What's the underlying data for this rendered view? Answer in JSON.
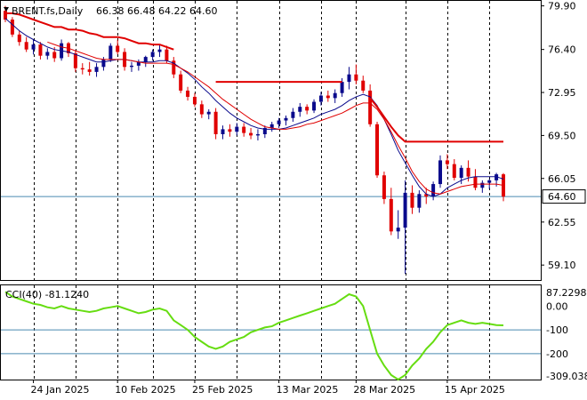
{
  "header": {
    "symbol": "BRENT.fs,Daily",
    "ohlc": "66.38 66.48 64.22 64.60"
  },
  "colors": {
    "background": "#ffffff",
    "grid": "#000000",
    "candle_up": "#0a0a8c",
    "candle_down": "#e00000",
    "ma_fast": "#0a0a8c",
    "ma_slow": "#e00000",
    "sar_trail": "#e00000",
    "price_line": "#4a8ab0",
    "cci": "#66dd11",
    "level_line": "#4a8ab0",
    "badge_bg": "#ffffff"
  },
  "price_axis": {
    "ticks": [
      "79.90",
      "76.40",
      "72.95",
      "69.50",
      "66.05",
      "62.55",
      "59.10"
    ],
    "current_badge": "64.60"
  },
  "cci_panel": {
    "label": "CCI(40) -81.1240",
    "ticks": [
      "87.2298",
      "0.00",
      "-100",
      "-200",
      "-309.038"
    ],
    "levels": [
      -100,
      -200
    ]
  },
  "x_axis": {
    "labels": [
      "24 Jan 2025",
      "10 Feb 2025",
      "25 Feb 2025",
      "13 Mar 2025",
      "28 Mar 2025",
      "15 Apr 2025"
    ]
  },
  "chart_data": [
    {
      "type": "candlestick",
      "title": "BRENT.fs,Daily",
      "ylim": [
        57.9,
        80.3
      ],
      "dates": [
        "2025-01-20",
        "2025-01-21",
        "2025-01-22",
        "2025-01-23",
        "2025-01-24",
        "2025-01-27",
        "2025-01-28",
        "2025-01-29",
        "2025-01-30",
        "2025-01-31",
        "2025-02-03",
        "2025-02-04",
        "2025-02-05",
        "2025-02-06",
        "2025-02-07",
        "2025-02-10",
        "2025-02-11",
        "2025-02-12",
        "2025-02-13",
        "2025-02-14",
        "2025-02-17",
        "2025-02-18",
        "2025-02-19",
        "2025-02-20",
        "2025-02-21",
        "2025-02-24",
        "2025-02-25",
        "2025-02-26",
        "2025-02-27",
        "2025-02-28",
        "2025-03-03",
        "2025-03-04",
        "2025-03-05",
        "2025-03-06",
        "2025-03-07",
        "2025-03-10",
        "2025-03-11",
        "2025-03-12",
        "2025-03-13",
        "2025-03-14",
        "2025-03-17",
        "2025-03-18",
        "2025-03-19",
        "2025-03-20",
        "2025-03-21",
        "2025-03-24",
        "2025-03-25",
        "2025-03-26",
        "2025-03-27",
        "2025-03-28",
        "2025-03-31",
        "2025-04-01",
        "2025-04-02",
        "2025-04-03",
        "2025-04-04",
        "2025-04-07",
        "2025-04-08",
        "2025-04-09",
        "2025-04-10",
        "2025-04-11",
        "2025-04-14",
        "2025-04-15",
        "2025-04-16",
        "2025-04-17",
        "2025-04-18",
        "2025-04-21",
        "2025-04-22",
        "2025-04-23",
        "2025-04-24",
        "2025-04-25",
        "2025-04-28",
        "2025-04-29"
      ],
      "ohlc": [
        [
          79.5,
          79.9,
          78.6,
          78.8
        ],
        [
          78.8,
          79.0,
          77.4,
          77.6
        ],
        [
          77.6,
          77.9,
          76.7,
          77.0
        ],
        [
          77.0,
          77.4,
          76.2,
          76.4
        ],
        [
          76.4,
          77.2,
          76.0,
          76.8
        ],
        [
          76.8,
          77.0,
          75.6,
          75.9
        ],
        [
          75.9,
          76.5,
          75.6,
          76.2
        ],
        [
          76.2,
          76.6,
          75.4,
          75.7
        ],
        [
          75.7,
          77.2,
          75.5,
          76.9
        ],
        [
          76.9,
          77.0,
          75.8,
          76.1
        ],
        [
          76.1,
          76.3,
          74.6,
          74.9
        ],
        [
          74.9,
          75.3,
          74.4,
          74.8
        ],
        [
          74.8,
          75.4,
          74.3,
          74.6
        ],
        [
          74.6,
          75.3,
          74.2,
          75.0
        ],
        [
          75.0,
          75.8,
          74.7,
          75.6
        ],
        [
          75.6,
          76.9,
          75.4,
          76.7
        ],
        [
          76.7,
          77.2,
          76.0,
          76.2
        ],
        [
          76.2,
          76.5,
          74.7,
          75.0
        ],
        [
          75.0,
          75.4,
          74.6,
          75.1
        ],
        [
          75.1,
          75.6,
          74.7,
          75.4
        ],
        [
          75.4,
          75.9,
          75.0,
          75.8
        ],
        [
          75.8,
          76.4,
          75.5,
          76.2
        ],
        [
          76.2,
          76.8,
          75.8,
          76.4
        ],
        [
          76.4,
          76.7,
          75.3,
          75.5
        ],
        [
          75.5,
          75.8,
          74.1,
          74.4
        ],
        [
          74.4,
          74.7,
          72.9,
          73.1
        ],
        [
          73.1,
          73.4,
          72.3,
          72.6
        ],
        [
          72.6,
          72.9,
          71.8,
          72.0
        ],
        [
          72.0,
          72.3,
          70.9,
          71.2
        ],
        [
          71.2,
          71.6,
          70.8,
          71.4
        ],
        [
          71.4,
          71.7,
          69.2,
          69.6
        ],
        [
          69.6,
          70.3,
          69.2,
          70.0
        ],
        [
          70.0,
          70.4,
          69.4,
          69.8
        ],
        [
          69.8,
          70.5,
          69.5,
          70.2
        ],
        [
          70.2,
          70.5,
          69.4,
          69.7
        ],
        [
          69.7,
          70.1,
          69.2,
          69.5
        ],
        [
          69.5,
          70.0,
          69.1,
          69.6
        ],
        [
          69.6,
          70.3,
          69.3,
          70.1
        ],
        [
          70.1,
          70.6,
          69.8,
          70.4
        ],
        [
          70.4,
          70.9,
          70.1,
          70.7
        ],
        [
          70.7,
          71.1,
          70.3,
          70.9
        ],
        [
          70.9,
          71.7,
          70.6,
          71.4
        ],
        [
          71.4,
          72.1,
          71.0,
          71.8
        ],
        [
          71.8,
          72.0,
          71.2,
          71.5
        ],
        [
          71.5,
          72.4,
          71.3,
          72.2
        ],
        [
          72.2,
          73.0,
          71.9,
          72.7
        ],
        [
          72.7,
          73.1,
          72.2,
          72.5
        ],
        [
          72.5,
          73.2,
          72.1,
          72.9
        ],
        [
          72.9,
          74.1,
          72.6,
          73.8
        ],
        [
          73.8,
          75.0,
          73.2,
          74.4
        ],
        [
          74.4,
          75.2,
          73.6,
          73.9
        ],
        [
          73.9,
          74.3,
          72.9,
          73.1
        ],
        [
          73.1,
          73.6,
          70.2,
          70.4
        ],
        [
          70.4,
          70.6,
          66.1,
          66.3
        ],
        [
          66.3,
          66.6,
          64.0,
          64.4
        ],
        [
          64.4,
          65.3,
          61.5,
          61.8
        ],
        [
          61.8,
          63.5,
          61.2,
          62.1
        ],
        [
          62.1,
          65.9,
          58.4,
          64.9
        ],
        [
          64.9,
          65.5,
          63.2,
          63.7
        ],
        [
          63.7,
          65.1,
          63.3,
          64.8
        ],
        [
          64.8,
          65.3,
          64.0,
          64.6
        ],
        [
          64.6,
          65.8,
          64.3,
          65.6
        ],
        [
          65.6,
          67.9,
          65.3,
          67.5
        ],
        [
          67.5,
          68.0,
          66.8,
          67.2
        ],
        [
          67.2,
          67.6,
          65.9,
          66.1
        ],
        [
          66.1,
          67.1,
          65.6,
          66.9
        ],
        [
          66.9,
          67.5,
          65.8,
          66.2
        ],
        [
          66.2,
          66.8,
          65.1,
          65.3
        ],
        [
          65.3,
          65.9,
          64.9,
          65.7
        ],
        [
          65.7,
          66.0,
          65.2,
          65.9
        ],
        [
          65.9,
          66.5,
          65.4,
          66.38
        ],
        [
          66.38,
          66.48,
          64.22,
          64.6
        ]
      ],
      "indicators": [
        {
          "name": "moving average (fast)",
          "color": "#0a0a8c",
          "values": [
            78.9,
            78.4,
            77.9,
            77.5,
            77.2,
            76.9,
            76.6,
            76.4,
            76.3,
            76.2,
            76.0,
            75.8,
            75.6,
            75.4,
            75.4,
            75.5,
            75.6,
            75.6,
            75.5,
            75.4,
            75.4,
            75.4,
            75.5,
            75.5,
            75.3,
            74.9,
            74.5,
            74.0,
            73.4,
            72.9,
            72.3,
            71.8,
            71.3,
            70.9,
            70.6,
            70.3,
            70.1,
            70.0,
            70.0,
            70.0,
            70.1,
            70.3,
            70.5,
            70.7,
            70.9,
            71.2,
            71.4,
            71.6,
            71.9,
            72.3,
            72.6,
            72.8,
            72.6,
            71.9,
            70.8,
            69.6,
            68.3,
            67.3,
            66.3,
            65.4,
            64.8,
            64.6,
            64.8,
            65.3,
            65.6,
            65.9,
            66.1,
            66.2,
            66.2,
            66.2,
            66.2,
            66.0
          ]
        },
        {
          "name": "moving average (slow)",
          "color": "#e00000",
          "values": [
            null,
            null,
            null,
            null,
            null,
            null,
            77.0,
            76.8,
            76.6,
            76.5,
            76.3,
            76.1,
            75.9,
            75.7,
            75.6,
            75.6,
            75.6,
            75.6,
            75.5,
            75.4,
            75.3,
            75.3,
            75.3,
            75.3,
            75.2,
            74.9,
            74.6,
            74.2,
            73.8,
            73.4,
            72.9,
            72.4,
            72.0,
            71.6,
            71.2,
            70.8,
            70.5,
            70.2,
            70.1,
            70.0,
            70.0,
            70.1,
            70.2,
            70.4,
            70.5,
            70.7,
            70.9,
            71.1,
            71.3,
            71.6,
            71.9,
            72.1,
            72.1,
            71.6,
            70.8,
            69.8,
            68.7,
            67.7,
            66.6,
            65.8,
            65.2,
            64.9,
            64.8,
            65.0,
            65.2,
            65.4,
            65.5,
            65.6,
            65.6,
            65.6,
            65.6,
            65.5
          ]
        },
        {
          "name": "trailing stop",
          "color": "#e00000",
          "values": [
            79.3,
            79.3,
            79.2,
            79.0,
            78.8,
            78.6,
            78.4,
            78.2,
            78.2,
            78.0,
            78.0,
            77.9,
            77.7,
            77.6,
            77.4,
            77.4,
            77.4,
            77.3,
            77.1,
            76.9,
            76.9,
            76.8,
            76.8,
            76.6,
            76.4,
            null,
            null,
            null,
            null,
            null,
            73.8,
            73.8,
            73.8,
            73.8,
            73.8,
            73.8,
            73.8,
            73.8,
            73.8,
            73.8,
            73.8,
            73.8,
            73.8,
            73.8,
            73.8,
            73.8,
            73.8,
            73.8,
            73.8,
            null,
            null,
            null,
            72.5,
            71.8,
            71.0,
            70.2,
            69.5,
            69.0,
            69.0,
            69.0,
            69.0,
            69.0,
            69.0,
            69.0,
            69.0,
            69.0,
            69.0,
            69.0,
            69.0,
            69.0,
            69.0,
            69.0
          ]
        }
      ],
      "current_price": 64.6
    },
    {
      "type": "line",
      "title": "CCI(40) -81.1240",
      "ylim": [
        -309.038,
        87.2298
      ],
      "series": [
        {
          "name": "CCI(40)",
          "values": [
            60,
            40,
            30,
            20,
            10,
            5,
            -5,
            -10,
            0,
            -10,
            -15,
            -20,
            -25,
            -20,
            -10,
            -5,
            0,
            -10,
            -20,
            -30,
            -25,
            -15,
            -10,
            -20,
            -60,
            -80,
            -100,
            -130,
            -150,
            -170,
            -180,
            -170,
            -150,
            -140,
            -130,
            -110,
            -100,
            -90,
            -85,
            -70,
            -60,
            -50,
            -40,
            -30,
            -20,
            -10,
            0,
            10,
            30,
            50,
            40,
            0,
            -100,
            -200,
            -250,
            -290,
            -309,
            -290,
            -250,
            -220,
            -180,
            -150,
            -110,
            -80,
            -70,
            -60,
            -70,
            -75,
            -70,
            -75,
            -80,
            -81.124
          ]
        }
      ]
    }
  ]
}
